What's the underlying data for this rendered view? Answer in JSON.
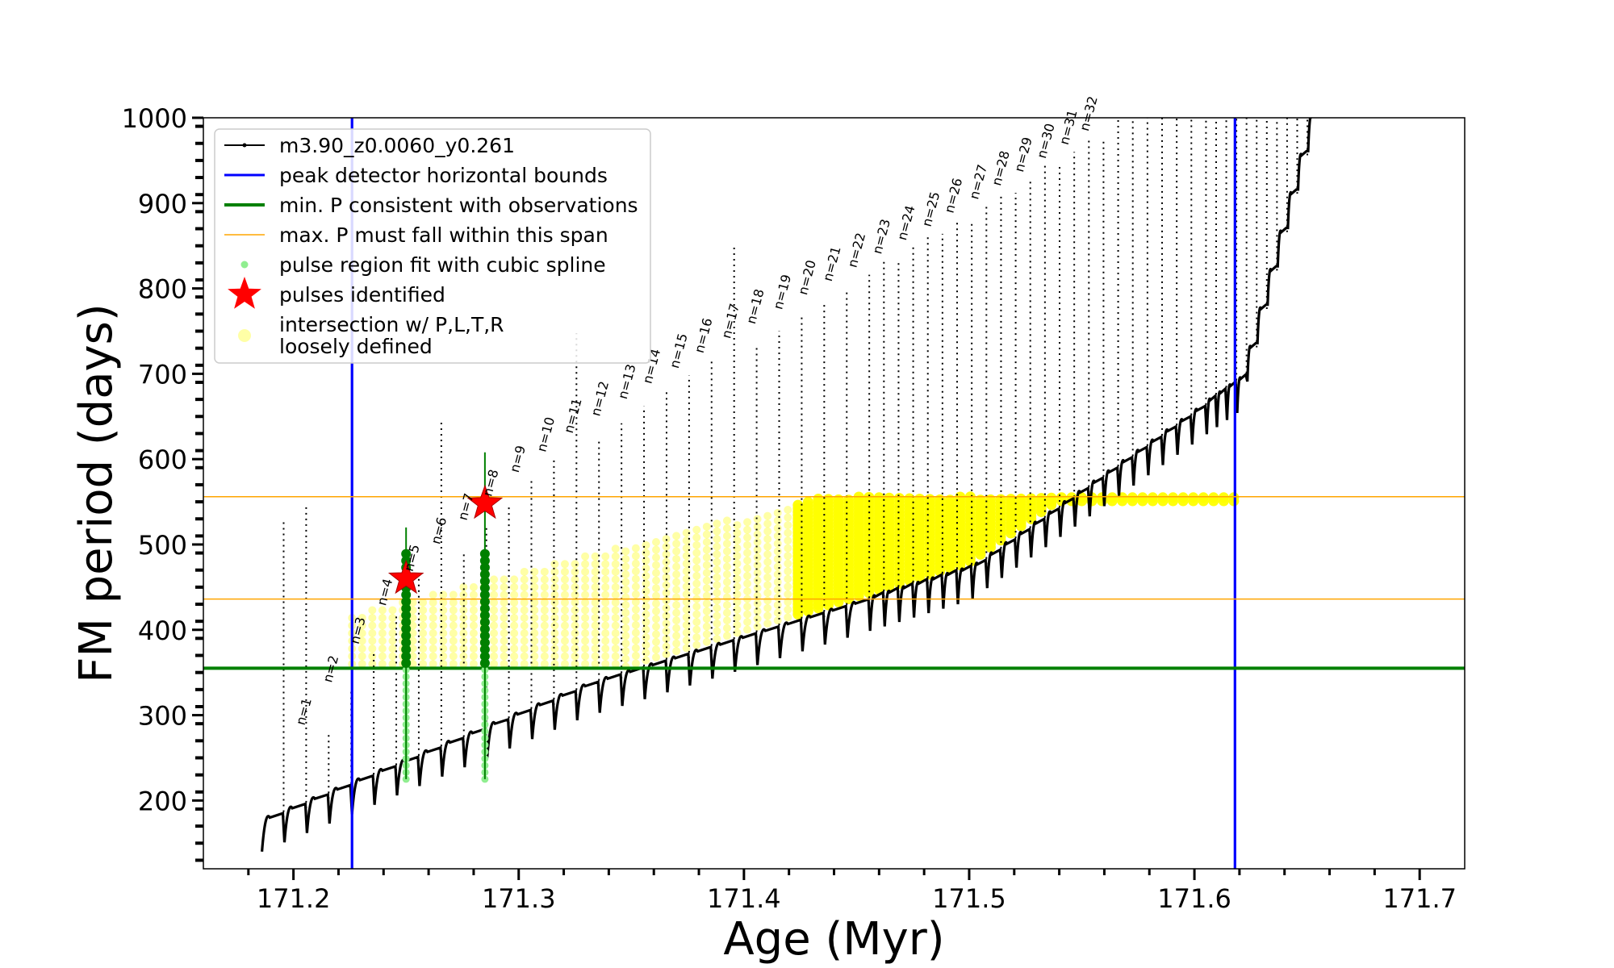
{
  "chart_data": {
    "type": "line",
    "title": "",
    "xlabel": "Age (Myr)",
    "ylabel": "FM period (days)",
    "xlim": [
      171.16,
      171.72
    ],
    "ylim": [
      120,
      1000
    ],
    "x_ticks": [
      "171.2",
      "171.3",
      "171.4",
      "171.5",
      "171.6",
      "171.7"
    ],
    "y_ticks": [
      "200",
      "300",
      "400",
      "500",
      "600",
      "700",
      "800",
      "900",
      "1000"
    ],
    "grid": false,
    "legend_position": "upper-left",
    "legend": [
      {
        "label": "m3.90_z0.0060_y0.261",
        "style": "black-line-dots",
        "color": "#000000"
      },
      {
        "label": "peak detector horizontal bounds",
        "style": "line",
        "color": "#0000ff"
      },
      {
        "label": "min. P consistent with observations",
        "style": "thick-line",
        "color": "#008000"
      },
      {
        "label": "max. P must fall within this span",
        "style": "thin-line",
        "color": "#ffa500"
      },
      {
        "label": "pulse region fit with cubic spline",
        "style": "dot",
        "color": "#90ee90"
      },
      {
        "label": "pulses identified",
        "style": "star",
        "color": "#ff0000"
      },
      {
        "label": "intersection w/ P,L,T,R",
        "label2": "loosely defined",
        "style": "big-dot",
        "color": "#ffff00"
      }
    ],
    "vertical_lines": [
      171.226,
      171.618
    ],
    "min_period": 355,
    "max_period_span": [
      436,
      556
    ],
    "pulses": [
      {
        "n": 1,
        "age": 171.202,
        "peak": 280
      },
      {
        "n": 2,
        "age": 171.214,
        "peak": 330
      },
      {
        "n": 3,
        "age": 171.226,
        "peak": 375
      },
      {
        "n": 4,
        "age": 171.238,
        "peak": 420
      },
      {
        "n": 5,
        "age": 171.25,
        "peak": 460
      },
      {
        "n": 6,
        "age": 171.262,
        "peak": 492
      },
      {
        "n": 7,
        "age": 171.274,
        "peak": 520
      },
      {
        "n": 8,
        "age": 171.285,
        "peak": 548
      },
      {
        "n": 9,
        "age": 171.297,
        "peak": 576
      },
      {
        "n": 10,
        "age": 171.309,
        "peak": 600
      },
      {
        "n": 11,
        "age": 171.321,
        "peak": 622
      },
      {
        "n": 12,
        "age": 171.333,
        "peak": 642
      },
      {
        "n": 13,
        "age": 171.345,
        "peak": 662
      },
      {
        "n": 14,
        "age": 171.356,
        "peak": 680
      },
      {
        "n": 15,
        "age": 171.368,
        "peak": 698
      },
      {
        "n": 16,
        "age": 171.379,
        "peak": 716
      },
      {
        "n": 17,
        "age": 171.391,
        "peak": 733
      },
      {
        "n": 18,
        "age": 171.402,
        "peak": 750
      },
      {
        "n": 19,
        "age": 171.414,
        "peak": 767
      },
      {
        "n": 20,
        "age": 171.425,
        "peak": 784
      },
      {
        "n": 21,
        "age": 171.436,
        "peak": 800
      },
      {
        "n": 22,
        "age": 171.447,
        "peak": 816
      },
      {
        "n": 23,
        "age": 171.458,
        "peak": 832
      },
      {
        "n": 24,
        "age": 171.469,
        "peak": 848
      },
      {
        "n": 25,
        "age": 171.48,
        "peak": 864
      },
      {
        "n": 26,
        "age": 171.49,
        "peak": 880
      },
      {
        "n": 27,
        "age": 171.501,
        "peak": 896
      },
      {
        "n": 28,
        "age": 171.511,
        "peak": 912
      },
      {
        "n": 29,
        "age": 171.521,
        "peak": 928
      },
      {
        "n": 30,
        "age": 171.531,
        "peak": 944
      },
      {
        "n": 31,
        "age": 171.541,
        "peak": 960
      },
      {
        "n": 32,
        "age": 171.55,
        "peak": 976
      }
    ],
    "pulse_labels": [
      "n=1",
      "n=2",
      "n=3",
      "n=4",
      "n=5",
      "n=6",
      "n=7",
      "n=8",
      "n=9",
      "n=10",
      "n=11",
      "n=12",
      "n=13",
      "n=14",
      "n=15",
      "n=16",
      "n=17",
      "n=18",
      "n=19",
      "n=20",
      "n=21",
      "n=22",
      "n=23",
      "n=24",
      "n=25",
      "n=26",
      "n=27",
      "n=28",
      "n=29",
      "n=30",
      "n=31",
      "n=32"
    ],
    "identified_pulses": [
      {
        "n": 5,
        "age": 171.25,
        "period": 460
      },
      {
        "n": 8,
        "age": 171.285,
        "period": 548
      }
    ]
  }
}
